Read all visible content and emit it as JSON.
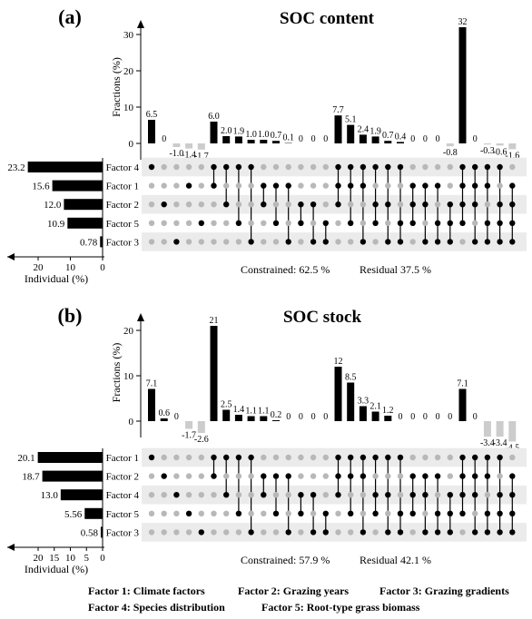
{
  "chart_data": [
    {
      "type": "upset",
      "panel_label": "(a)",
      "title": "SOC content",
      "ylabel": "Fractions (%)",
      "ylim": [
        -3,
        35
      ],
      "yticks": [
        0,
        10,
        20,
        30
      ],
      "individual_xlabel": "Individual (%)",
      "individual_xticks": [
        20,
        10,
        0
      ],
      "sets": [
        {
          "name": "Factor 4",
          "individual": 23.2,
          "label": "23.2"
        },
        {
          "name": "Factor 1",
          "individual": 15.6,
          "label": "15.6"
        },
        {
          "name": "Factor 2",
          "individual": 12.0,
          "label": "12.0"
        },
        {
          "name": "Factor 5",
          "individual": 10.9,
          "label": "10.9"
        },
        {
          "name": "Factor 3",
          "individual": 0.78,
          "label": "0.78"
        }
      ],
      "columns": [
        {
          "value": 6.5,
          "label": "6.5",
          "members": [
            0
          ]
        },
        {
          "value": 0,
          "label": "0",
          "members": [
            2
          ]
        },
        {
          "value": -1.0,
          "label": "-1.0",
          "members": [
            4
          ]
        },
        {
          "value": -1.4,
          "label": "-1.4",
          "members": [
            1
          ]
        },
        {
          "value": -1.7,
          "label": "-1.7",
          "members": [
            3
          ]
        },
        {
          "value": 6.0,
          "label": "6.0",
          "members": [
            0,
            1
          ]
        },
        {
          "value": 2.0,
          "label": "2.0",
          "members": [
            0,
            2
          ]
        },
        {
          "value": 1.9,
          "label": "1.9",
          "members": [
            0,
            3
          ]
        },
        {
          "value": 1.0,
          "label": "1.0",
          "members": [
            0,
            4
          ]
        },
        {
          "value": 1.0,
          "label": "1.0",
          "members": [
            1,
            2
          ]
        },
        {
          "value": 0.7,
          "label": "0.7",
          "members": [
            1,
            3
          ]
        },
        {
          "value": 0.1,
          "label": "0.1",
          "members": [
            1,
            4
          ]
        },
        {
          "value": 0,
          "label": "0",
          "members": [
            2,
            3
          ]
        },
        {
          "value": 0,
          "label": "0",
          "members": [
            2,
            4
          ]
        },
        {
          "value": 0,
          "label": "0",
          "members": [
            3,
            4
          ]
        },
        {
          "value": 7.7,
          "label": "7.7",
          "members": [
            0,
            1,
            2
          ]
        },
        {
          "value": 5.1,
          "label": "5.1",
          "members": [
            0,
            1,
            3
          ]
        },
        {
          "value": 2.4,
          "label": "2.4",
          "members": [
            0,
            1,
            4
          ]
        },
        {
          "value": 1.9,
          "label": "1.9",
          "members": [
            0,
            2,
            3
          ]
        },
        {
          "value": 0.7,
          "label": "0.7",
          "members": [
            0,
            2,
            4
          ]
        },
        {
          "value": 0.4,
          "label": "0.4",
          "members": [
            0,
            3,
            4
          ]
        },
        {
          "value": 0,
          "label": "0",
          "members": [
            1,
            2,
            3
          ]
        },
        {
          "value": 0,
          "label": "0",
          "members": [
            1,
            2,
            4
          ]
        },
        {
          "value": 0,
          "label": "0",
          "members": [
            1,
            3,
            4
          ]
        },
        {
          "value": -0.8,
          "label": "-0.8",
          "members": [
            2,
            3,
            4
          ]
        },
        {
          "value": 32,
          "label": "32",
          "members": [
            0,
            1,
            2,
            3
          ]
        },
        {
          "value": 0,
          "label": "0",
          "members": [
            0,
            1,
            2,
            4
          ]
        },
        {
          "value": -0.3,
          "label": "-0.3",
          "members": [
            0,
            1,
            3,
            4
          ]
        },
        {
          "value": -0.6,
          "label": "-0.6",
          "members": [
            0,
            2,
            3,
            4
          ]
        },
        {
          "value": -1.6,
          "label": "-1.6",
          "members": [
            1,
            2,
            3,
            4
          ]
        }
      ],
      "constrained": "Constrained: 62.5 %",
      "residual": "Residual 37.5 %"
    },
    {
      "type": "upset",
      "panel_label": "(b)",
      "title": "SOC stock",
      "ylabel": "Fractions (%)",
      "ylim": [
        -5,
        23
      ],
      "yticks": [
        0,
        10,
        20
      ],
      "individual_xlabel": "Individual (%)",
      "individual_xticks": [
        20,
        15,
        10,
        5,
        0
      ],
      "sets": [
        {
          "name": "Factor 1",
          "individual": 20.1,
          "label": "20.1"
        },
        {
          "name": "Factor 2",
          "individual": 18.7,
          "label": "18.7"
        },
        {
          "name": "Factor 4",
          "individual": 13.0,
          "label": "13.0"
        },
        {
          "name": "Factor 5",
          "individual": 5.56,
          "label": "5.56"
        },
        {
          "name": "Factor 3",
          "individual": 0.58,
          "label": "0.58"
        }
      ],
      "columns": [
        {
          "value": 7.1,
          "label": "7.1",
          "members": [
            0
          ]
        },
        {
          "value": 0.6,
          "label": "0.6",
          "members": [
            1
          ]
        },
        {
          "value": 0,
          "label": "0",
          "members": [
            2
          ]
        },
        {
          "value": -1.7,
          "label": "-1.7",
          "members": [
            3
          ]
        },
        {
          "value": -2.6,
          "label": "-2.6",
          "members": [
            4
          ]
        },
        {
          "value": 21,
          "label": "21",
          "members": [
            0,
            1
          ]
        },
        {
          "value": 2.5,
          "label": "2.5",
          "members": [
            0,
            2
          ]
        },
        {
          "value": 1.4,
          "label": "1.4",
          "members": [
            0,
            3
          ]
        },
        {
          "value": 1.1,
          "label": "1.1",
          "members": [
            0,
            4
          ]
        },
        {
          "value": 1.1,
          "label": "1.1",
          "members": [
            1,
            2
          ]
        },
        {
          "value": 0.2,
          "label": "0.2",
          "members": [
            1,
            3
          ]
        },
        {
          "value": 0,
          "label": "0",
          "members": [
            1,
            4
          ]
        },
        {
          "value": 0,
          "label": "0",
          "members": [
            2,
            3
          ]
        },
        {
          "value": 0,
          "label": "0",
          "members": [
            2,
            4
          ]
        },
        {
          "value": 0,
          "label": "0",
          "members": [
            3,
            4
          ]
        },
        {
          "value": 12,
          "label": "12",
          "members": [
            0,
            1,
            2
          ]
        },
        {
          "value": 8.5,
          "label": "8.5",
          "members": [
            0,
            1,
            3
          ]
        },
        {
          "value": 3.3,
          "label": "3.3",
          "members": [
            0,
            1,
            4
          ]
        },
        {
          "value": 2.1,
          "label": "2.1",
          "members": [
            0,
            2,
            3
          ]
        },
        {
          "value": 1.2,
          "label": "1.2",
          "members": [
            0,
            2,
            4
          ]
        },
        {
          "value": 0,
          "label": "0",
          "members": [
            0,
            3,
            4
          ]
        },
        {
          "value": 0,
          "label": "0",
          "members": [
            1,
            2,
            3
          ]
        },
        {
          "value": 0,
          "label": "0",
          "members": [
            1,
            2,
            4
          ]
        },
        {
          "value": 0,
          "label": "0",
          "members": [
            1,
            3,
            4
          ]
        },
        {
          "value": 0,
          "label": "0",
          "members": [
            2,
            3,
            4
          ]
        },
        {
          "value": 7.1,
          "label": "7.1",
          "members": [
            0,
            1,
            2,
            3
          ]
        },
        {
          "value": 0,
          "label": "0",
          "members": [
            0,
            1,
            2,
            4
          ]
        },
        {
          "value": -3.4,
          "label": "-3.4",
          "members": [
            0,
            1,
            3,
            4
          ]
        },
        {
          "value": -3.4,
          "label": "-3.4",
          "members": [
            0,
            2,
            3,
            4
          ]
        },
        {
          "value": -4.5,
          "label": "-4.5",
          "members": [
            1,
            2,
            3,
            4
          ]
        }
      ],
      "constrained": "Constrained: 57.9 %",
      "residual": "Residual 42.1 %"
    }
  ],
  "legend": [
    "Factor 1: Climate factors",
    "Factor 2: Grazing years",
    "Factor 3: Grazing gradients",
    "Factor 4: Species distribution",
    "Factor 5: Root-type grass biomass"
  ],
  "colors": {
    "bar": "#000000",
    "dot_on": "#000000",
    "dot_off": "#b8b8b8",
    "row_shade": "#ebebeb",
    "negative_bar": "#cccccc"
  }
}
